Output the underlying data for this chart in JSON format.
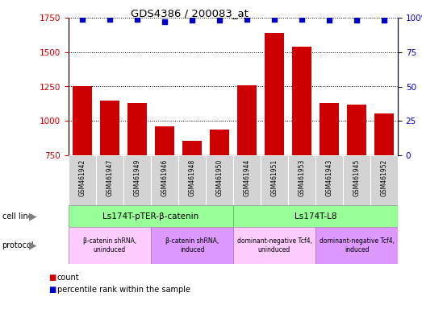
{
  "title": "GDS4386 / 200083_at",
  "samples": [
    "GSM461942",
    "GSM461947",
    "GSM461949",
    "GSM461946",
    "GSM461948",
    "GSM461950",
    "GSM461944",
    "GSM461951",
    "GSM461953",
    "GSM461943",
    "GSM461945",
    "GSM461952"
  ],
  "counts": [
    1255,
    1145,
    1130,
    960,
    855,
    940,
    1260,
    1640,
    1540,
    1130,
    1120,
    1055
  ],
  "percentile_ranks": [
    99,
    99,
    99,
    97,
    98,
    98,
    99,
    99,
    99,
    98,
    98,
    98
  ],
  "ylim_left": [
    750,
    1750
  ],
  "ylim_right": [
    0,
    100
  ],
  "yticks_left": [
    750,
    1000,
    1250,
    1500,
    1750
  ],
  "yticks_right": [
    0,
    25,
    50,
    75,
    100
  ],
  "bar_color": "#cc0000",
  "dot_color": "#0000cc",
  "cell_line_groups": [
    {
      "label": "Ls174T-pTER-β-catenin",
      "start": 0,
      "end": 6,
      "color": "#99ff99"
    },
    {
      "label": "Ls174T-L8",
      "start": 6,
      "end": 12,
      "color": "#99ff99"
    }
  ],
  "protocol_groups": [
    {
      "label": "β-catenin shRNA,\nuninduced",
      "start": 0,
      "end": 3,
      "color": "#ffccff"
    },
    {
      "label": "β-catenin shRNA,\ninduced",
      "start": 3,
      "end": 6,
      "color": "#dd99ff"
    },
    {
      "label": "dominant-negative Tcf4,\nuninduced",
      "start": 6,
      "end": 9,
      "color": "#ffccff"
    },
    {
      "label": "dominant-negative Tcf4,\ninduced",
      "start": 9,
      "end": 12,
      "color": "#dd99ff"
    }
  ],
  "cell_line_label": "cell line",
  "protocol_label": "protocol",
  "legend_count_label": "count",
  "legend_percentile_label": "percentile rank within the sample",
  "bg_color": "#ffffff",
  "tick_label_color_left": "#cc0000",
  "tick_label_color_right": "#0000cc",
  "sample_bg_color": "#d3d3d3",
  "arrow_color": "#808080"
}
